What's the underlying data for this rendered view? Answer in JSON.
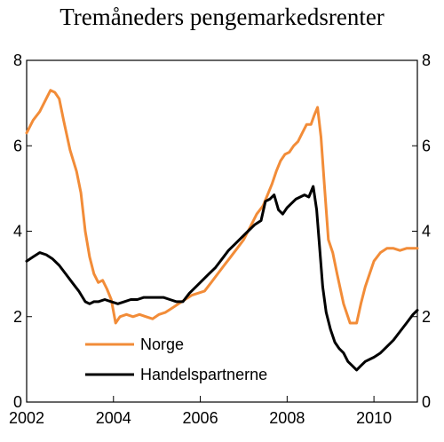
{
  "chart_data": {
    "type": "line",
    "title": "Tremåneders pengemarkedsrenter",
    "xlabel": "",
    "ylabel": "",
    "xlim": [
      2002,
      2011
    ],
    "ylim": [
      0,
      8
    ],
    "x_ticks": [
      "2002",
      "2004",
      "2006",
      "2008",
      "2010"
    ],
    "x_tick_values": [
      2002,
      2004,
      2006,
      2008,
      2010
    ],
    "y_ticks": [
      "0",
      "2",
      "4",
      "6",
      "8"
    ],
    "y_tick_values": [
      0,
      2,
      4,
      6,
      8
    ],
    "right_axis_mirror": true,
    "grid": false,
    "legend_position": "bottom-left",
    "series": [
      {
        "name": "Norge",
        "color": "#f28c38",
        "x": [
          2002.0,
          2002.15,
          2002.3,
          2002.45,
          2002.55,
          2002.65,
          2002.75,
          2002.85,
          2003.0,
          2003.15,
          2003.25,
          2003.35,
          2003.45,
          2003.55,
          2003.65,
          2003.75,
          2003.85,
          2003.95,
          2004.05,
          2004.15,
          2004.3,
          2004.45,
          2004.6,
          2004.75,
          2004.9,
          2005.05,
          2005.2,
          2005.35,
          2005.5,
          2005.65,
          2005.8,
          2005.95,
          2006.1,
          2006.25,
          2006.4,
          2006.55,
          2006.7,
          2006.85,
          2007.0,
          2007.15,
          2007.3,
          2007.45,
          2007.55,
          2007.65,
          2007.75,
          2007.85,
          2007.95,
          2008.05,
          2008.15,
          2008.25,
          2008.35,
          2008.45,
          2008.55,
          2008.62,
          2008.7,
          2008.78,
          2008.85,
          2008.95,
          2009.05,
          2009.15,
          2009.3,
          2009.45,
          2009.6,
          2009.7,
          2009.8,
          2009.9,
          2010.0,
          2010.15,
          2010.3,
          2010.45,
          2010.6,
          2010.75,
          2010.9,
          2011.0
        ],
        "values": [
          6.3,
          6.6,
          6.8,
          7.1,
          7.3,
          7.25,
          7.1,
          6.6,
          5.9,
          5.4,
          4.9,
          4.0,
          3.4,
          3.0,
          2.8,
          2.85,
          2.65,
          2.4,
          1.85,
          2.0,
          2.05,
          2.0,
          2.05,
          2.0,
          1.95,
          2.05,
          2.1,
          2.2,
          2.3,
          2.4,
          2.5,
          2.55,
          2.6,
          2.8,
          3.0,
          3.2,
          3.4,
          3.6,
          3.8,
          4.1,
          4.4,
          4.6,
          4.85,
          5.1,
          5.4,
          5.65,
          5.8,
          5.85,
          6.0,
          6.1,
          6.3,
          6.5,
          6.5,
          6.7,
          6.9,
          6.2,
          5.2,
          3.8,
          3.5,
          3.0,
          2.3,
          1.85,
          1.85,
          2.3,
          2.7,
          3.0,
          3.3,
          3.5,
          3.6,
          3.6,
          3.55,
          3.6,
          3.6,
          3.6
        ]
      },
      {
        "name": "Handelspartnerne",
        "color": "#000000",
        "x": [
          2002.0,
          2002.15,
          2002.3,
          2002.45,
          2002.6,
          2002.75,
          2002.9,
          2003.05,
          2003.2,
          2003.35,
          2003.45,
          2003.55,
          2003.65,
          2003.8,
          2003.95,
          2004.1,
          2004.25,
          2004.4,
          2004.55,
          2004.7,
          2004.85,
          2005.0,
          2005.15,
          2005.3,
          2005.45,
          2005.6,
          2005.75,
          2005.9,
          2006.05,
          2006.2,
          2006.35,
          2006.5,
          2006.65,
          2006.8,
          2006.95,
          2007.1,
          2007.25,
          2007.4,
          2007.5,
          2007.6,
          2007.7,
          2007.8,
          2007.9,
          2008.0,
          2008.1,
          2008.2,
          2008.3,
          2008.4,
          2008.5,
          2008.6,
          2008.68,
          2008.75,
          2008.82,
          2008.9,
          2009.0,
          2009.1,
          2009.2,
          2009.3,
          2009.4,
          2009.5,
          2009.6,
          2009.7,
          2009.8,
          2009.9,
          2010.0,
          2010.15,
          2010.3,
          2010.45,
          2010.6,
          2010.75,
          2010.9,
          2011.0
        ],
        "values": [
          3.3,
          3.4,
          3.5,
          3.45,
          3.35,
          3.2,
          3.0,
          2.8,
          2.6,
          2.35,
          2.3,
          2.35,
          2.35,
          2.4,
          2.35,
          2.3,
          2.35,
          2.4,
          2.4,
          2.45,
          2.45,
          2.45,
          2.45,
          2.4,
          2.35,
          2.35,
          2.55,
          2.7,
          2.85,
          3.0,
          3.15,
          3.35,
          3.55,
          3.7,
          3.85,
          4.0,
          4.15,
          4.25,
          4.7,
          4.75,
          4.85,
          4.5,
          4.4,
          4.55,
          4.65,
          4.75,
          4.8,
          4.85,
          4.8,
          5.05,
          4.5,
          3.6,
          2.7,
          2.1,
          1.7,
          1.4,
          1.25,
          1.15,
          0.95,
          0.85,
          0.75,
          0.85,
          0.95,
          1.0,
          1.05,
          1.15,
          1.3,
          1.45,
          1.65,
          1.85,
          2.05,
          2.15
        ]
      }
    ]
  }
}
